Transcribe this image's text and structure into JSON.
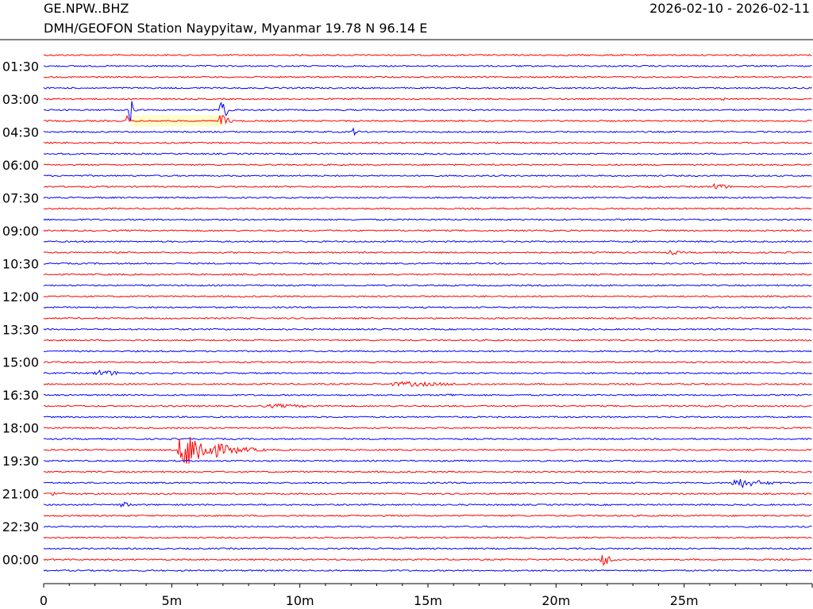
{
  "header": {
    "station_code": "GE.NPW..BHZ",
    "station_desc": "DMH/GEOFON Station Naypyitaw, Myanmar  19.78 N 96.14 E",
    "date_range": "2026-02-10 - 2026-02-11"
  },
  "colors": {
    "trace_a": "#ff0000",
    "trace_b": "#0000ff",
    "highlight": "#ffffcc",
    "axis": "#000000"
  },
  "chart_data": {
    "type": "line",
    "title": "GE.NPW..BHZ",
    "subtitle": "DMH/GEOFON Station Naypyitaw, Myanmar  19.78 N 96.14 E",
    "xlabel": "",
    "ylabel": "",
    "x_unit": "minutes",
    "xlim": [
      0,
      30
    ],
    "x_ticks": [
      {
        "value": 0,
        "label": "0"
      },
      {
        "value": 5,
        "label": "5m"
      },
      {
        "value": 10,
        "label": "10m"
      },
      {
        "value": 15,
        "label": "15m"
      },
      {
        "value": 20,
        "label": "20m"
      },
      {
        "value": 25,
        "label": "25m"
      }
    ],
    "line_count": 48,
    "line_start_times": [
      "01:00",
      "01:30",
      "02:00",
      "02:30",
      "03:00",
      "03:30",
      "04:00",
      "04:30",
      "05:00",
      "05:30",
      "06:00",
      "06:30",
      "07:00",
      "07:30",
      "08:00",
      "08:30",
      "09:00",
      "09:30",
      "10:00",
      "10:30",
      "11:00",
      "11:30",
      "12:00",
      "12:30",
      "13:00",
      "13:30",
      "14:00",
      "14:30",
      "15:00",
      "15:30",
      "16:00",
      "16:30",
      "17:00",
      "17:30",
      "18:00",
      "18:30",
      "19:00",
      "19:30",
      "20:00",
      "20:30",
      "21:00",
      "21:30",
      "22:00",
      "22:30",
      "23:00",
      "23:30",
      "00:00",
      "00:30"
    ],
    "y_tick_labels": [
      {
        "line": 1,
        "label": "01:30"
      },
      {
        "line": 4,
        "label": "03:00"
      },
      {
        "line": 7,
        "label": "04:30"
      },
      {
        "line": 10,
        "label": "06:00"
      },
      {
        "line": 13,
        "label": "07:30"
      },
      {
        "line": 16,
        "label": "09:00"
      },
      {
        "line": 19,
        "label": "10:30"
      },
      {
        "line": 22,
        "label": "12:00"
      },
      {
        "line": 25,
        "label": "13:30"
      },
      {
        "line": 28,
        "label": "15:00"
      },
      {
        "line": 31,
        "label": "16:30"
      },
      {
        "line": 34,
        "label": "18:00"
      },
      {
        "line": 37,
        "label": "19:30"
      },
      {
        "line": 40,
        "label": "21:00"
      },
      {
        "line": 43,
        "label": "22:30"
      },
      {
        "line": 46,
        "label": "00:00"
      }
    ],
    "highlight": {
      "line": 6,
      "x_start": 3.4,
      "x_end": 7.0
    },
    "events": [
      {
        "line": 5,
        "start": 3.3,
        "duration": 0.35,
        "amplitude": 45
      },
      {
        "line": 5,
        "start": 6.85,
        "duration": 0.6,
        "amplitude": 30
      },
      {
        "line": 6,
        "start": 3.2,
        "duration": 0.3,
        "amplitude": 12
      },
      {
        "line": 6,
        "start": 6.8,
        "duration": 0.8,
        "amplitude": 18
      },
      {
        "line": 7,
        "start": 12.0,
        "duration": 0.6,
        "amplitude": 8
      },
      {
        "line": 4,
        "start": 26.4,
        "duration": 0.4,
        "amplitude": 8
      },
      {
        "line": 12,
        "start": 26.1,
        "duration": 1.2,
        "amplitude": 9
      },
      {
        "line": 18,
        "start": 24.3,
        "duration": 1.4,
        "amplitude": 5
      },
      {
        "line": 29,
        "start": 1.8,
        "duration": 3.6,
        "amplitude": 6
      },
      {
        "line": 30,
        "start": 13.2,
        "duration": 7.5,
        "amplitude": 5
      },
      {
        "line": 31,
        "start": 15.5,
        "duration": 3.0,
        "amplitude": 3
      },
      {
        "line": 32,
        "start": 8.3,
        "duration": 6.0,
        "amplitude": 4
      },
      {
        "line": 36,
        "start": 5.1,
        "duration": 3.6,
        "amplitude": 38
      },
      {
        "line": 40,
        "start": 0.0,
        "duration": 2.5,
        "amplitude": 4
      },
      {
        "line": 39,
        "start": 26.7,
        "duration": 3.3,
        "amplitude": 10
      },
      {
        "line": 41,
        "start": 2.9,
        "duration": 1.2,
        "amplitude": 7
      },
      {
        "line": 46,
        "start": 21.7,
        "duration": 1.1,
        "amplitude": 15
      }
    ]
  }
}
